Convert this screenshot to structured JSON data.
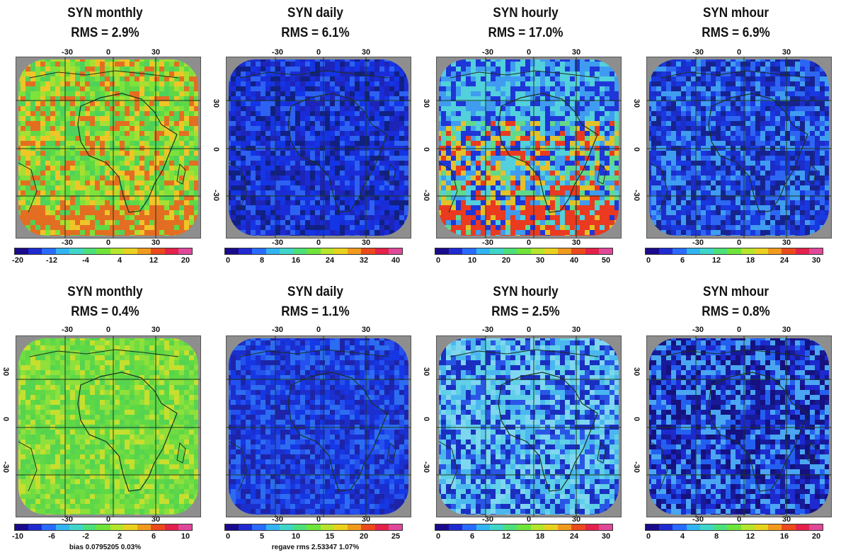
{
  "rows": [
    {
      "panels": [
        {
          "title": "SYN monthly",
          "rms": "RMS = 2.9%",
          "ticks": [
            "-20",
            "-12",
            "-4",
            "4",
            "12",
            "20"
          ],
          "colors": "seq0"
        },
        {
          "title": "SYN daily",
          "rms": "RMS = 6.1%",
          "ticks": [
            "0",
            "8",
            "16",
            "24",
            "32",
            "40"
          ],
          "colors": "seq1"
        },
        {
          "title": "SYN hourly",
          "rms": "RMS = 17.0%",
          "ticks": [
            "0",
            "10",
            "20",
            "30",
            "40",
            "50"
          ],
          "colors": "seq2"
        },
        {
          "title": "SYN mhour",
          "rms": "RMS = 6.9%",
          "ticks": [
            "0",
            "6",
            "12",
            "18",
            "24",
            "30"
          ],
          "colors": "seq3"
        }
      ]
    },
    {
      "panels": [
        {
          "title": "SYN monthly",
          "rms": "RMS = 0.4%",
          "ticks": [
            "-10",
            "-6",
            "-2",
            "2",
            "6",
            "10"
          ],
          "colors": "seq0",
          "note": "bias  0.0795205  0.03%"
        },
        {
          "title": "SYN daily",
          "rms": "RMS = 1.1%",
          "ticks": [
            "0",
            "5",
            "10",
            "15",
            "20",
            "25"
          ],
          "colors": "seq1",
          "note": "regave rms 2.53347  1.07%"
        },
        {
          "title": "SYN hourly",
          "rms": "RMS = 2.5%",
          "ticks": [
            "0",
            "6",
            "12",
            "18",
            "24",
            "30"
          ],
          "colors": "seq2"
        },
        {
          "title": "SYN mhour",
          "rms": "RMS = 0.8%",
          "ticks": [
            "0",
            "4",
            "8",
            "12",
            "16",
            "20"
          ],
          "colors": "seq3"
        }
      ]
    }
  ],
  "lon_labels": [
    "-30",
    "0",
    "30"
  ],
  "lat_labels": [
    "30",
    "0",
    "-30"
  ],
  "colorbar": [
    "#1a0a8c",
    "#1f2bd0",
    "#2a6bff",
    "#33b4f2",
    "#3fd6c9",
    "#4ce07a",
    "#6fe43a",
    "#b6e52c",
    "#e9d21f",
    "#f29a1d",
    "#ec4a1d",
    "#e3214a",
    "#e0489a"
  ]
}
